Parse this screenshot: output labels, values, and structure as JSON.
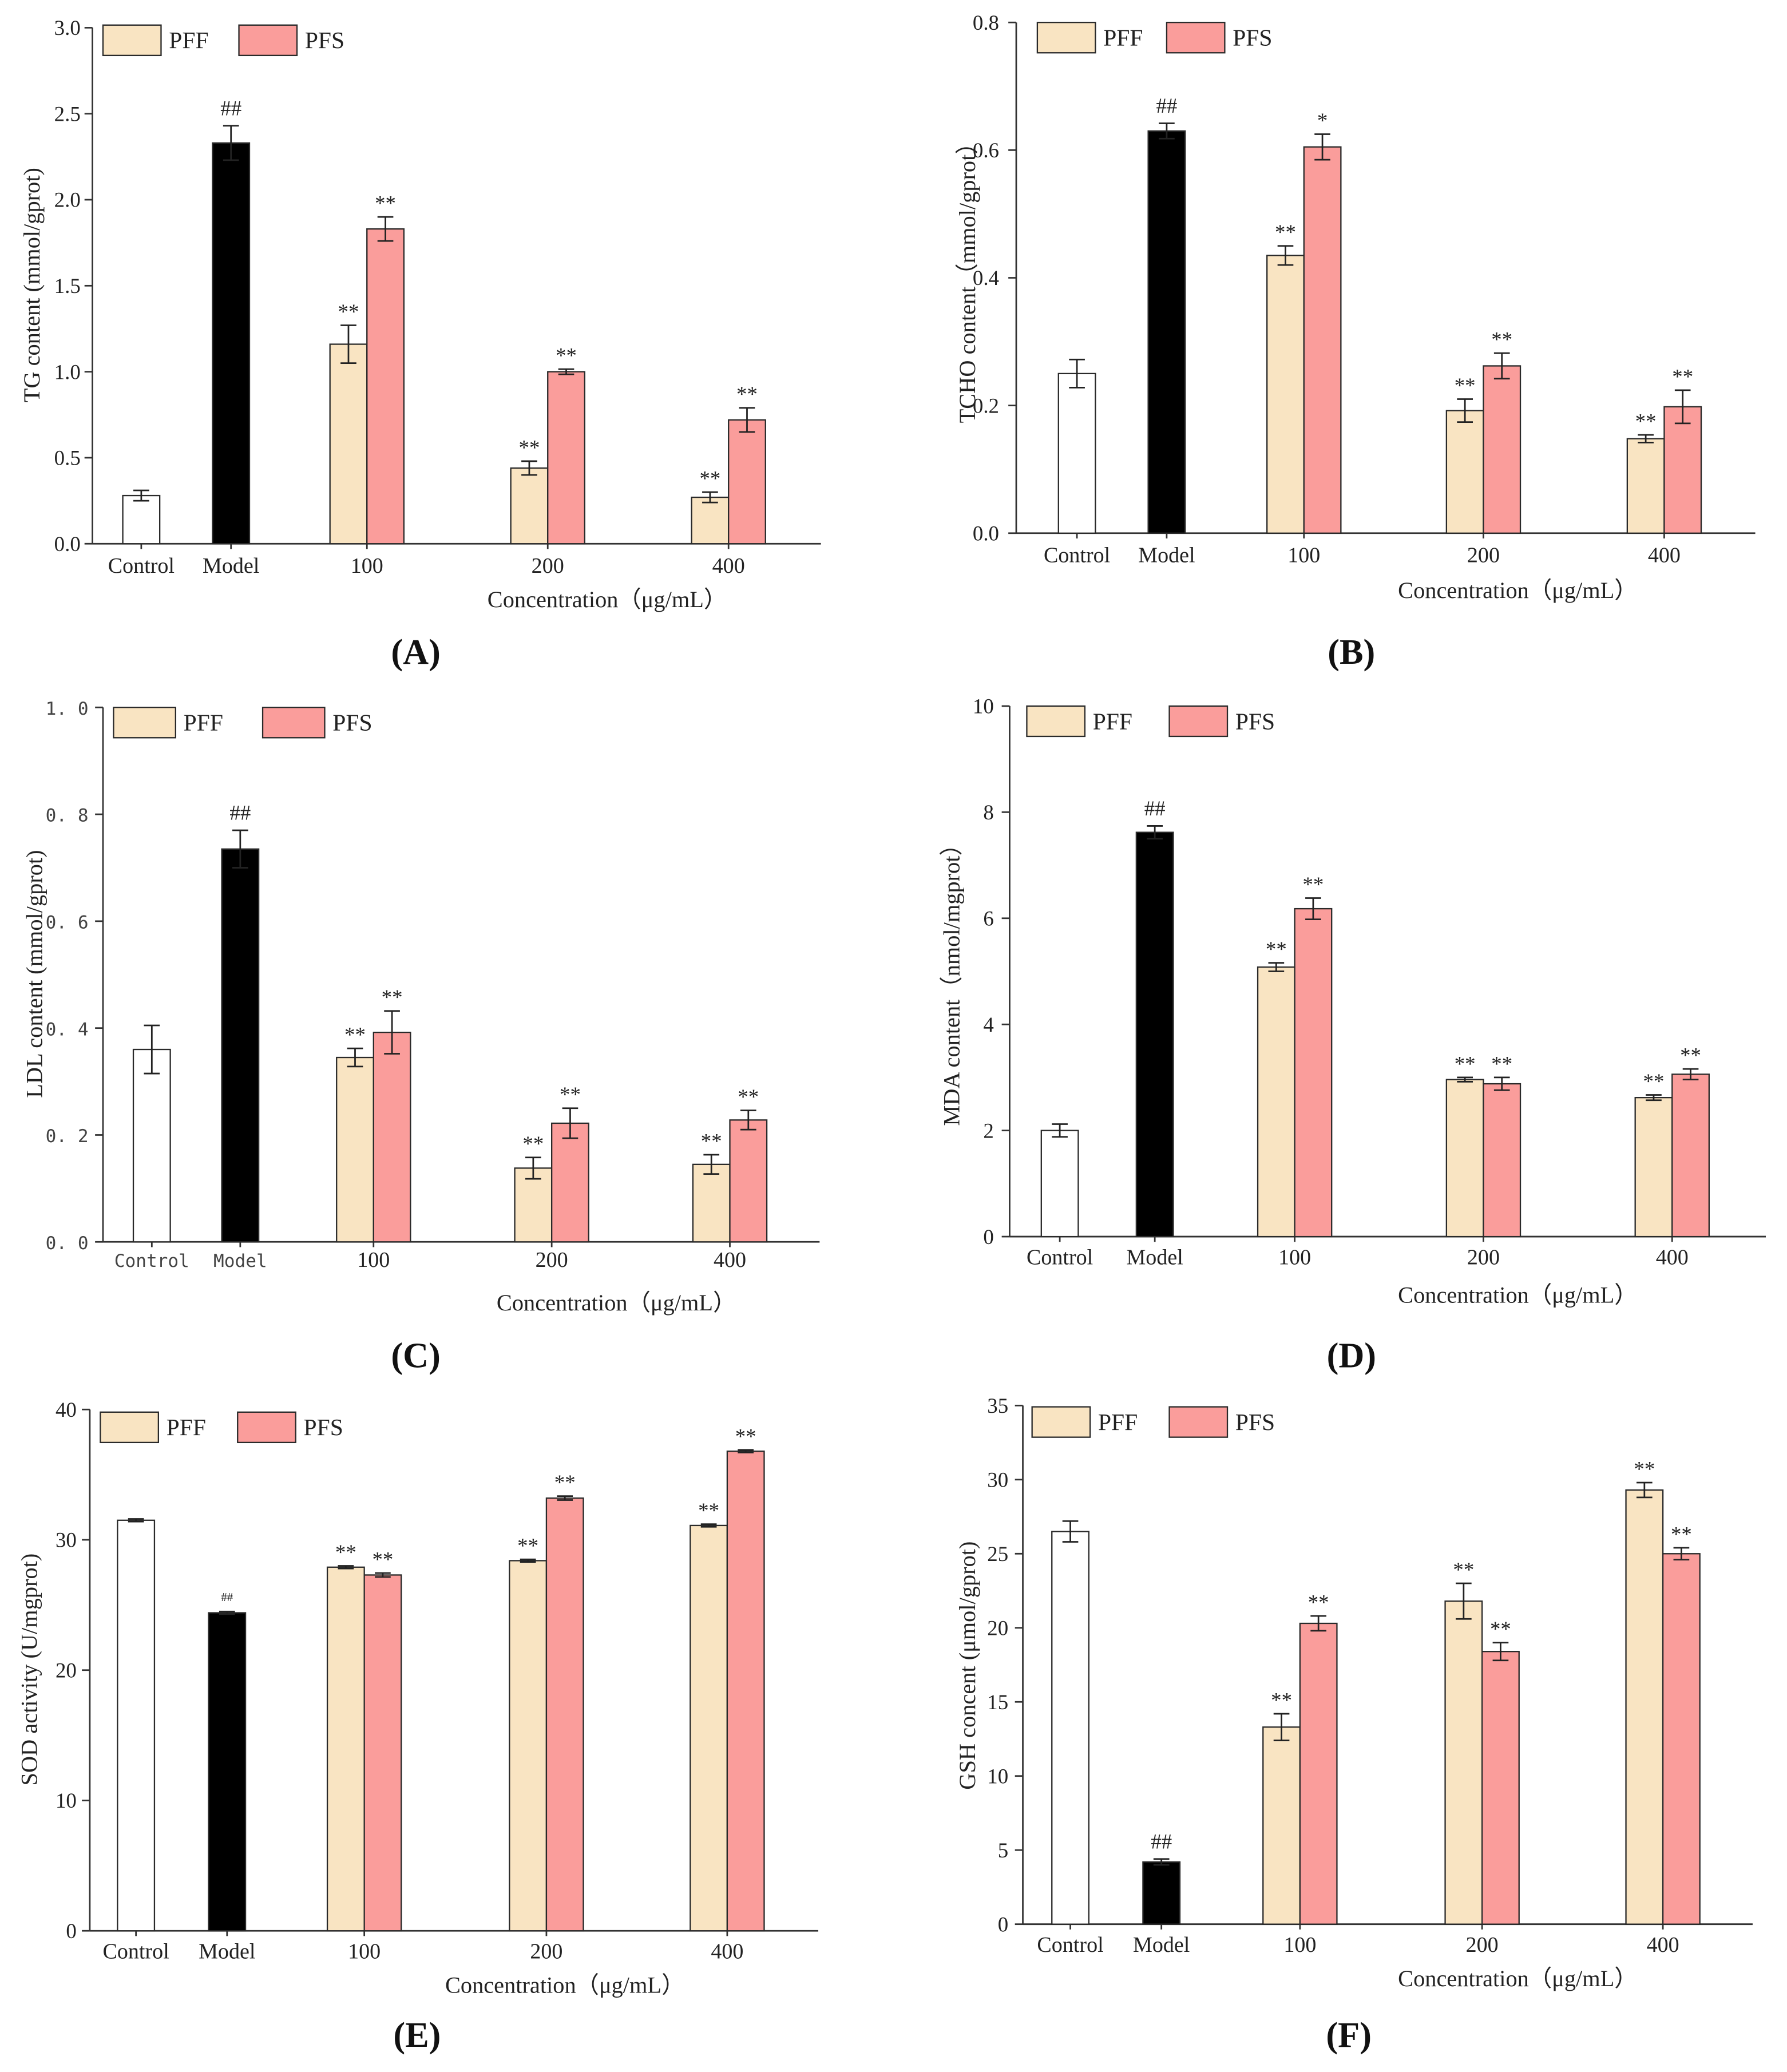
{
  "figure": {
    "colors": {
      "Control": "#FFFFFF",
      "Model": "#000000",
      "PFF": "#F9E4C2",
      "PFS": "#FA9D9B",
      "bar_stroke": "#2A2A2A",
      "axis": "#333333"
    }
  },
  "chart_data": [
    {
      "panel": "(A)",
      "type": "bar",
      "ylabel": "TG content (mmol/gprot)",
      "xlabel": "Concentration（μg/mL）",
      "ylim": [
        0,
        3.0
      ],
      "yticks": [
        0,
        0.5,
        1.0,
        1.5,
        2.0,
        2.5,
        3.0
      ],
      "ytick_labels": [
        "0.0",
        "0.5",
        "1.0",
        "1.5",
        "2.0",
        "2.5",
        "3.0"
      ],
      "categories": [
        "Control",
        "Model",
        "100",
        "200",
        "400"
      ],
      "legend": [
        "PFF",
        "PFS"
      ],
      "bars": [
        {
          "category": "Control",
          "series": "Control",
          "value": 0.28,
          "error": 0.03
        },
        {
          "category": "Model",
          "series": "Model",
          "value": 2.33,
          "error": 0.1,
          "mark": "##"
        },
        {
          "category": "100",
          "series": "PFF",
          "value": 1.16,
          "error": 0.11,
          "mark": "**"
        },
        {
          "category": "100",
          "series": "PFS",
          "value": 1.83,
          "error": 0.07,
          "mark": "**"
        },
        {
          "category": "200",
          "series": "PFF",
          "value": 0.44,
          "error": 0.04,
          "mark": "**"
        },
        {
          "category": "200",
          "series": "PFS",
          "value": 1.0,
          "error": 0.015,
          "mark": "**"
        },
        {
          "category": "400",
          "series": "PFF",
          "value": 0.27,
          "error": 0.03,
          "mark": "**"
        },
        {
          "category": "400",
          "series": "PFS",
          "value": 0.72,
          "error": 0.07,
          "mark": "**"
        }
      ]
    },
    {
      "panel": "(B)",
      "type": "bar",
      "ylabel": "TCHO content（mmol/gprot）",
      "xlabel": "Concentration（μg/mL）",
      "ylim": [
        0,
        0.8
      ],
      "yticks": [
        0,
        0.2,
        0.4,
        0.6,
        0.8
      ],
      "ytick_labels": [
        "0.0",
        "0.2",
        "0.4",
        "0.6",
        "0.8"
      ],
      "categories": [
        "Control",
        "Model",
        "100",
        "200",
        "400"
      ],
      "legend": [
        "PFF",
        "PFS"
      ],
      "bars": [
        {
          "category": "Control",
          "series": "Control",
          "value": 0.25,
          "error": 0.022
        },
        {
          "category": "Model",
          "series": "Model",
          "value": 0.63,
          "error": 0.012,
          "mark": "##"
        },
        {
          "category": "100",
          "series": "PFF",
          "value": 0.435,
          "error": 0.015,
          "mark": "**"
        },
        {
          "category": "100",
          "series": "PFS",
          "value": 0.605,
          "error": 0.02,
          "mark": "*"
        },
        {
          "category": "200",
          "series": "PFF",
          "value": 0.192,
          "error": 0.018,
          "mark": "**"
        },
        {
          "category": "200",
          "series": "PFS",
          "value": 0.262,
          "error": 0.02,
          "mark": "**"
        },
        {
          "category": "400",
          "series": "PFF",
          "value": 0.148,
          "error": 0.006,
          "mark": "**"
        },
        {
          "category": "400",
          "series": "PFS",
          "value": 0.198,
          "error": 0.026,
          "mark": "**"
        }
      ]
    },
    {
      "panel": "(C)",
      "type": "bar",
      "ylabel": "LDL content (mmol/gprot)",
      "xlabel": "Concentration（μg/mL）",
      "ylim": [
        0,
        1.0
      ],
      "yticks": [
        0,
        0.2,
        0.4,
        0.6,
        0.8,
        1.0
      ],
      "ytick_labels": [
        "0. 0",
        "0. 2",
        "0. 4",
        "0. 6",
        "0. 8",
        "1. 0"
      ],
      "categories": [
        "Control",
        "Model",
        "100",
        "200",
        "400"
      ],
      "legend": [
        "PFF",
        "PFS"
      ],
      "bars": [
        {
          "category": "Control",
          "series": "Control",
          "value": 0.36,
          "error": 0.045
        },
        {
          "category": "Model",
          "series": "Model",
          "value": 0.735,
          "error": 0.035,
          "mark": "##"
        },
        {
          "category": "100",
          "series": "PFF",
          "value": 0.345,
          "error": 0.017,
          "mark": "**"
        },
        {
          "category": "100",
          "series": "PFS",
          "value": 0.392,
          "error": 0.04,
          "mark": "**"
        },
        {
          "category": "200",
          "series": "PFF",
          "value": 0.138,
          "error": 0.02,
          "mark": "**"
        },
        {
          "category": "200",
          "series": "PFS",
          "value": 0.222,
          "error": 0.028,
          "mark": "**"
        },
        {
          "category": "400",
          "series": "PFF",
          "value": 0.145,
          "error": 0.018,
          "mark": "**"
        },
        {
          "category": "400",
          "series": "PFS",
          "value": 0.228,
          "error": 0.018,
          "mark": "**"
        }
      ]
    },
    {
      "panel": "(D)",
      "type": "bar",
      "ylabel": "MDA content（nmol/mgprot）",
      "xlabel": "Concentration（μg/mL）",
      "ylim": [
        0,
        10
      ],
      "yticks": [
        0,
        2,
        4,
        6,
        8,
        10
      ],
      "ytick_labels": [
        "0",
        "2",
        "4",
        "6",
        "8",
        "10"
      ],
      "categories": [
        "Control",
        "Model",
        "100",
        "200",
        "400"
      ],
      "legend": [
        "PFF",
        "PFS"
      ],
      "bars": [
        {
          "category": "Control",
          "series": "Control",
          "value": 2.0,
          "error": 0.12
        },
        {
          "category": "Model",
          "series": "Model",
          "value": 7.62,
          "error": 0.12,
          "mark": "##"
        },
        {
          "category": "100",
          "series": "PFF",
          "value": 5.08,
          "error": 0.08,
          "mark": "**"
        },
        {
          "category": "100",
          "series": "PFS",
          "value": 6.18,
          "error": 0.2,
          "mark": "**"
        },
        {
          "category": "200",
          "series": "PFF",
          "value": 2.96,
          "error": 0.04,
          "mark": "**"
        },
        {
          "category": "200",
          "series": "PFS",
          "value": 2.88,
          "error": 0.12,
          "mark": "**"
        },
        {
          "category": "400",
          "series": "PFF",
          "value": 2.62,
          "error": 0.05,
          "mark": "**"
        },
        {
          "category": "400",
          "series": "PFS",
          "value": 3.06,
          "error": 0.1,
          "mark": "**"
        }
      ]
    },
    {
      "panel": "(E)",
      "type": "bar",
      "ylabel": "SOD activity (U/mgprot)",
      "xlabel": "Concentration（μg/mL）",
      "ylim": [
        0,
        40
      ],
      "yticks": [
        0,
        10,
        20,
        30,
        40
      ],
      "ytick_labels": [
        "0",
        "10",
        "20",
        "30",
        "40"
      ],
      "categories": [
        "Control",
        "Model",
        "100",
        "200",
        "400"
      ],
      "legend": [
        "PFF",
        "PFS"
      ],
      "bars": [
        {
          "category": "Control",
          "series": "Control",
          "value": 31.5,
          "error": 0.1
        },
        {
          "category": "Model",
          "series": "Model",
          "value": 24.4,
          "error": 0.1,
          "mark": "##"
        },
        {
          "category": "100",
          "series": "PFF",
          "value": 27.9,
          "error": 0.1,
          "mark": "**"
        },
        {
          "category": "100",
          "series": "PFS",
          "value": 27.3,
          "error": 0.15,
          "mark": "**"
        },
        {
          "category": "200",
          "series": "PFF",
          "value": 28.4,
          "error": 0.1,
          "mark": "**"
        },
        {
          "category": "200",
          "series": "PFS",
          "value": 33.2,
          "error": 0.15,
          "mark": "**"
        },
        {
          "category": "400",
          "series": "PFF",
          "value": 31.1,
          "error": 0.1,
          "mark": "**"
        },
        {
          "category": "400",
          "series": "PFS",
          "value": 36.8,
          "error": 0.1,
          "mark": "**"
        }
      ]
    },
    {
      "panel": "(F)",
      "type": "bar",
      "ylabel": "GSH concent (μmol/gprot)",
      "xlabel": "Concentration（μg/mL）",
      "ylim": [
        0,
        35
      ],
      "yticks": [
        0,
        5,
        10,
        15,
        20,
        25,
        30,
        35
      ],
      "ytick_labels": [
        "0",
        "5",
        "10",
        "15",
        "20",
        "25",
        "30",
        "35"
      ],
      "categories": [
        "Control",
        "Model",
        "100",
        "200",
        "400"
      ],
      "legend": [
        "PFF",
        "PFS"
      ],
      "bars": [
        {
          "category": "Control",
          "series": "Control",
          "value": 26.5,
          "error": 0.7
        },
        {
          "category": "Model",
          "series": "Model",
          "value": 4.2,
          "error": 0.2,
          "mark": "##"
        },
        {
          "category": "100",
          "series": "PFF",
          "value": 13.3,
          "error": 0.9,
          "mark": "**"
        },
        {
          "category": "100",
          "series": "PFS",
          "value": 20.3,
          "error": 0.5,
          "mark": "**"
        },
        {
          "category": "200",
          "series": "PFF",
          "value": 21.8,
          "error": 1.2,
          "mark": "**"
        },
        {
          "category": "200",
          "series": "PFS",
          "value": 18.4,
          "error": 0.6,
          "mark": "**"
        },
        {
          "category": "400",
          "series": "PFF",
          "value": 29.3,
          "error": 0.5,
          "mark": "**"
        },
        {
          "category": "400",
          "series": "PFS",
          "value": 25.0,
          "error": 0.4,
          "mark": "**"
        }
      ]
    }
  ]
}
